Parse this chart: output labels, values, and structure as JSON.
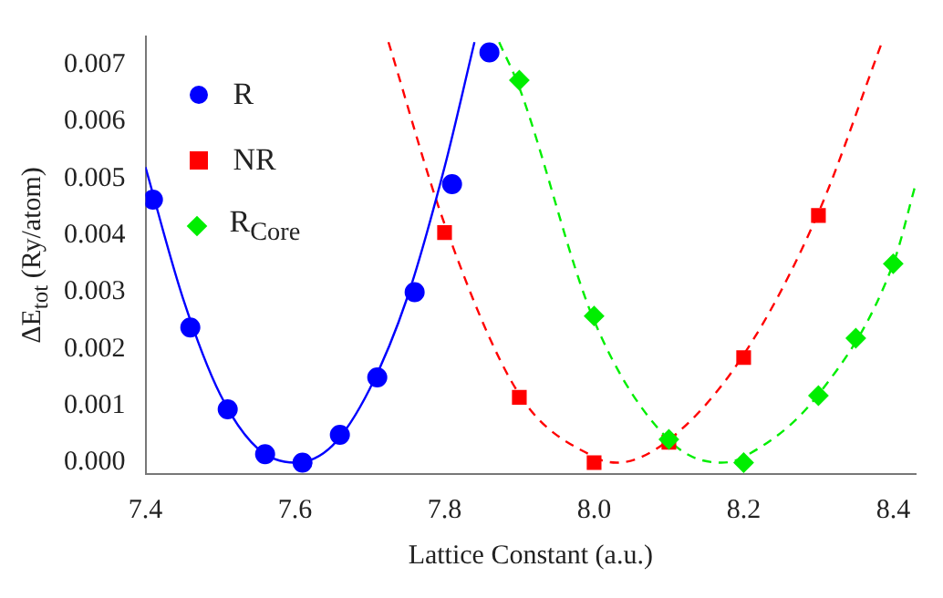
{
  "chart_data": {
    "type": "scatter",
    "xlabel": "Lattice Constant (a.u.)",
    "ylabel": "ΔE$_{tot}$ (Ry/atom)",
    "xlim": [
      7.4,
      8.43
    ],
    "ylim": [
      -0.0002,
      0.0075
    ],
    "xticks": [
      7.4,
      7.6,
      7.8,
      {
        "value": 8.0,
        "label": "8.0"
      },
      8.2,
      8.4
    ],
    "yticks": [
      {
        "value": 0,
        "label": "0.000"
      },
      {
        "value": 0.001,
        "label": "0.001"
      },
      {
        "value": 0.002,
        "label": "0.002"
      },
      {
        "value": 0.003,
        "label": "0.003"
      },
      {
        "value": 0.004,
        "label": "0.004"
      },
      {
        "value": 0.005,
        "label": "0.005"
      },
      {
        "value": 0.006,
        "label": "0.006"
      },
      {
        "value": 0.007,
        "label": "0.007"
      }
    ],
    "grid": false,
    "legend": "top left",
    "series": [
      {
        "name": "R",
        "color": "#0000ff",
        "marker": "circle",
        "x": [
          7.41,
          7.46,
          7.51,
          7.56,
          7.61,
          7.66,
          7.71,
          7.76,
          7.81,
          7.86
        ],
        "values": [
          0.00463,
          0.00238,
          0.00094,
          0.00015,
          0.0,
          0.00049,
          0.0015,
          0.003,
          0.0049,
          0.00722
        ]
      },
      {
        "name": "NR",
        "color": "#ff0000",
        "marker": "square",
        "x": [
          7.8,
          7.9,
          8.0,
          8.1,
          8.2,
          8.3
        ],
        "values": [
          0.00405,
          0.00115,
          0.0,
          0.00036,
          0.00185,
          0.00435
        ]
      },
      {
        "name": "R$_{Core}$",
        "color": "#00ee00",
        "marker": "diamond",
        "x": [
          7.9,
          8.0,
          8.1,
          8.2,
          8.3,
          8.35,
          8.4
        ],
        "values": [
          0.00673,
          0.00258,
          0.00041,
          0.0,
          0.00118,
          0.00219,
          0.0035
        ]
      },
      {
        "type": "line",
        "color": "#0000ff",
        "line_style": "solid",
        "x": [
          7.4,
          7.45,
          7.5,
          7.55,
          7.6,
          7.65,
          7.7,
          7.75,
          7.8,
          7.84
        ],
        "values": [
          0.0052,
          0.0029,
          0.0012,
          0.00025,
          0.0,
          0.0003,
          0.0013,
          0.0029,
          0.0052,
          0.0074
        ]
      },
      {
        "type": "line",
        "color": "#ff0000",
        "line_style": "dashed",
        "x": [
          7.725,
          7.8,
          7.9,
          8.0,
          8.03,
          8.1,
          8.2,
          8.3,
          8.385
        ],
        "values": [
          0.0074,
          0.0042,
          0.0012,
          0.0001,
          0.0,
          0.0004,
          0.0019,
          0.0044,
          0.0074
        ]
      },
      {
        "type": "line",
        "color": "#00ee00",
        "line_style": "dashed",
        "x": [
          7.873,
          7.9,
          8.0,
          8.1,
          8.17,
          8.2,
          8.3,
          8.4,
          8.43
        ],
        "values": [
          0.0074,
          0.0066,
          0.0025,
          0.0004,
          0.0,
          0.0001,
          0.0012,
          0.0035,
          0.0049
        ]
      }
    ]
  }
}
